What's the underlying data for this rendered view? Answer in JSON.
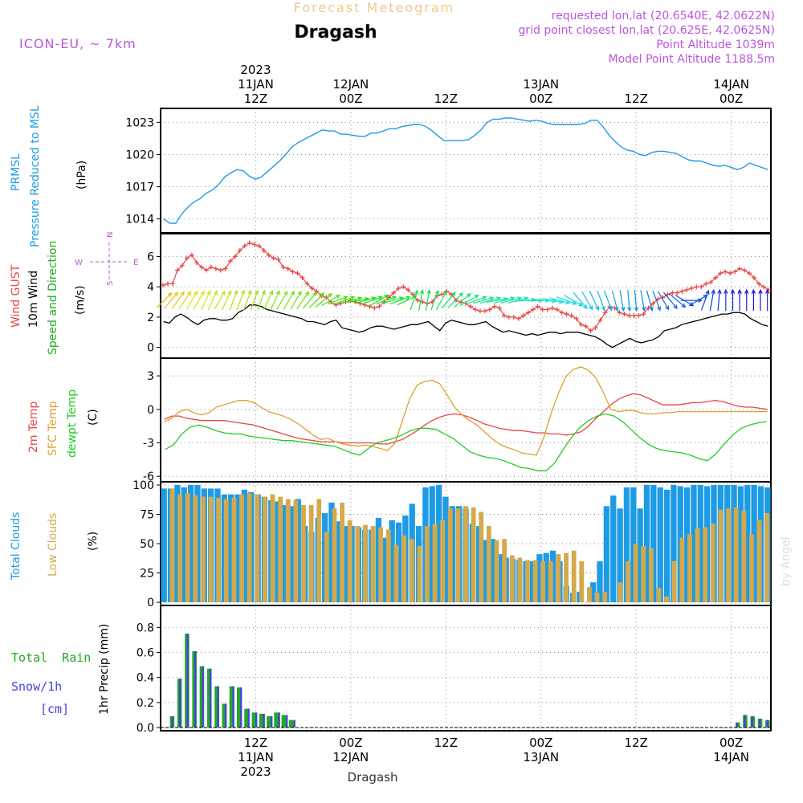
{
  "header": {
    "subtitle": "Forecast Meteogram",
    "station": "Dragash",
    "model": "ICON-EU, ~ 7km",
    "requested": "requested lon,lat (20.6540E, 42.0622N)",
    "gridpoint": "grid point closest lon,lat (20.625E, 42.0625N)",
    "point_alt": "Point Altitude 1039m",
    "model_alt": "Model Point Altitude 1188.5m",
    "watermark": "by Angel",
    "footer": "Dragash"
  },
  "colors": {
    "pressure": "#1e9be6",
    "gust": "#e84646",
    "wind": "#000000",
    "t2m": "#e84646",
    "sfc": "#e0a030",
    "dewpt": "#22cc22",
    "total_clouds": "#1e9be6",
    "low_clouds": "#d4a94a",
    "rain": "#22aa22",
    "snow": "#4444dd",
    "purple": "#bb55dd",
    "grid": "#888888"
  },
  "time_axis": {
    "top_labels": [
      {
        "hour": 12,
        "lines": [
          "2023",
          "11JAN",
          "12Z"
        ]
      },
      {
        "hour": 24,
        "lines": [
          "12JAN",
          "00Z"
        ]
      },
      {
        "hour": 36,
        "lines": [
          "12Z"
        ]
      },
      {
        "hour": 48,
        "lines": [
          "13JAN",
          "00Z"
        ]
      },
      {
        "hour": 60,
        "lines": [
          "12Z"
        ]
      },
      {
        "hour": 72,
        "lines": [
          "14JAN",
          "00Z"
        ]
      }
    ],
    "bottom_labels": [
      {
        "hour": 12,
        "lines": [
          "12Z",
          "11JAN",
          "2023"
        ]
      },
      {
        "hour": 24,
        "lines": [
          "00Z",
          "12JAN"
        ]
      },
      {
        "hour": 36,
        "lines": [
          "12Z"
        ]
      },
      {
        "hour": 48,
        "lines": [
          "00Z",
          "13JAN"
        ]
      },
      {
        "hour": 60,
        "lines": [
          "12Z"
        ]
      },
      {
        "hour": 72,
        "lines": [
          "00Z",
          "14JAN"
        ]
      }
    ]
  },
  "panels": {
    "pressure": {
      "label_lines": [
        "PRMSL",
        "Pressure Reduced to MSL"
      ],
      "unit": "(hPa)"
    },
    "wind": {
      "label_gust": "Wind GUST",
      "label_wind_lines": [
        "10m Wind",
        "Speed and Direction"
      ],
      "unit": "(m/s)",
      "compass": {
        "w": "W",
        "e": "E",
        "n": "N",
        "s": "S"
      }
    },
    "temp": {
      "label_t2m": "2m Temp",
      "label_sfc": "SFC Temp",
      "label_dew": "dewpt Temp",
      "unit": "(C)"
    },
    "clouds": {
      "label_total": "Total Clouds",
      "label_low": "Low Clouds",
      "unit": "(%)"
    },
    "precip": {
      "label_rain": "Total  Rain",
      "label_snow": "Snow/1h",
      "label_cm": "[cm]",
      "unit": "1hr Precip (mm)"
    }
  },
  "chart_data": {
    "type": "line",
    "x_start_hour": 0,
    "x_end_hour": 77,
    "series_hours_start": 0.5,
    "pressure": {
      "ylim": [
        1013,
        1024
      ],
      "ticks": [
        1014,
        1017,
        1020,
        1023
      ],
      "values": [
        1014.0,
        1013.6,
        1013.6,
        1014.5,
        1015.1,
        1015.6,
        1015.9,
        1016.4,
        1016.7,
        1017.2,
        1017.9,
        1018.3,
        1018.6,
        1018.5,
        1018.0,
        1017.7,
        1017.9,
        1018.4,
        1018.9,
        1019.4,
        1020.0,
        1020.7,
        1021.1,
        1021.4,
        1021.7,
        1022.0,
        1022.3,
        1022.2,
        1022.2,
        1021.9,
        1021.9,
        1021.8,
        1021.7,
        1021.7,
        1022.0,
        1022.0,
        1022.2,
        1022.4,
        1022.4,
        1022.6,
        1022.7,
        1022.8,
        1022.8,
        1022.6,
        1022.2,
        1021.7,
        1021.3,
        1021.3,
        1021.3,
        1021.3,
        1021.4,
        1021.8,
        1022.3,
        1023.0,
        1023.3,
        1023.3,
        1023.4,
        1023.4,
        1023.3,
        1023.2,
        1023.1,
        1023.2,
        1023.1,
        1022.9,
        1022.8,
        1022.8,
        1022.8,
        1022.8,
        1022.8,
        1022.9,
        1023.2,
        1023.2,
        1022.6,
        1021.8,
        1021.2,
        1020.7,
        1020.4,
        1020.3,
        1020.0,
        1019.9,
        1020.2,
        1020.3,
        1020.3,
        1020.2,
        1020.1,
        1019.8,
        1019.5,
        1019.4,
        1019.4,
        1019.2,
        1019.0,
        1018.9,
        1019.0,
        1018.8,
        1018.6,
        1018.8,
        1019.2,
        1019.0,
        1018.8,
        1018.6
      ]
    },
    "wind": {
      "ylim": [
        -0.5,
        7.3
      ],
      "ticks": [
        0,
        2,
        4,
        6
      ],
      "gust": [
        4.1,
        4.2,
        4.2,
        5.1,
        5.4,
        5.9,
        6.1,
        5.6,
        5.3,
        5.1,
        5.3,
        5.2,
        5.1,
        5.2,
        5.7,
        6.0,
        6.4,
        6.7,
        6.9,
        6.8,
        6.7,
        6.4,
        6.1,
        5.9,
        5.8,
        5.3,
        5.2,
        5.0,
        4.9,
        4.6,
        4.2,
        3.9,
        3.7,
        3.4,
        3.3,
        3.0,
        2.8,
        2.9,
        3.0,
        3.1,
        3.0,
        2.9,
        2.8,
        2.7,
        2.6,
        2.7,
        3.0,
        3.3,
        3.6,
        3.9,
        4.0,
        3.8,
        3.5,
        3.1,
        3.0,
        2.9,
        3.0,
        3.4,
        3.5,
        3.7,
        3.5,
        3.1,
        3.0,
        2.9,
        2.7,
        2.5,
        2.4,
        2.4,
        2.5,
        2.7,
        2.6,
        2.1,
        2.0,
        2.0,
        1.9,
        2.1,
        2.3,
        2.5,
        2.7,
        2.5,
        2.5,
        2.6,
        2.5,
        2.3,
        2.2,
        2.1,
        1.9,
        1.5,
        1.4,
        1.1,
        1.3,
        1.8,
        2.3,
        2.7,
        2.6,
        2.3,
        2.2,
        2.1,
        2.1,
        2.1,
        2.2,
        2.6,
        2.9,
        3.2,
        3.3,
        3.5,
        3.6,
        3.6,
        3.7,
        3.8,
        3.9,
        4.0,
        4.0,
        4.2,
        4.3,
        4.6,
        4.9,
        5.0,
        4.9,
        5.0,
        5.2,
        5.1,
        4.9,
        4.6,
        4.2,
        4.0,
        3.8
      ],
      "speed": [
        1.7,
        1.6,
        2.0,
        2.2,
        2.0,
        1.7,
        1.5,
        1.8,
        1.9,
        1.9,
        1.8,
        1.8,
        1.9,
        2.3,
        2.5,
        2.8,
        2.8,
        2.7,
        2.5,
        2.4,
        2.3,
        2.2,
        2.1,
        2.0,
        1.9,
        1.7,
        1.7,
        1.6,
        1.5,
        1.7,
        1.8,
        1.3,
        1.2,
        1.1,
        1.0,
        1.1,
        1.3,
        1.4,
        1.4,
        1.3,
        1.2,
        1.3,
        1.4,
        1.5,
        1.5,
        1.6,
        1.7,
        1.4,
        1.1,
        1.6,
        1.8,
        1.7,
        1.6,
        1.5,
        1.5,
        1.6,
        1.7,
        1.4,
        1.2,
        1.0,
        1.1,
        1.0,
        0.9,
        0.8,
        0.9,
        0.8,
        0.9,
        1.0,
        1.0,
        0.9,
        1.0,
        1.0,
        1.0,
        0.9,
        0.8,
        0.7,
        0.5,
        0.2,
        0.0,
        0.2,
        0.4,
        0.6,
        0.4,
        0.3,
        0.4,
        0.5,
        0.7,
        1.1,
        1.2,
        1.3,
        1.5,
        1.6,
        1.7,
        1.8,
        1.9,
        2.0,
        2.1,
        2.2,
        2.2,
        2.3,
        2.3,
        2.2,
        1.9,
        1.7,
        1.5,
        1.4
      ],
      "direction_deg": [
        225,
        220,
        215,
        215,
        210,
        210,
        205,
        205,
        210,
        205,
        200,
        200,
        200,
        200,
        200,
        205,
        205,
        210,
        210,
        210,
        215,
        220,
        225,
        230,
        240,
        250,
        250,
        255,
        260,
        255,
        250,
        240,
        250,
        255,
        250,
        245,
        200,
        190,
        190,
        200,
        210,
        220,
        225,
        230,
        240,
        250,
        255,
        255,
        260,
        255,
        255,
        255,
        265,
        270,
        270,
        275,
        280,
        285,
        290,
        300,
        320,
        330,
        335,
        340,
        340,
        345,
        350,
        355,
        355,
        350,
        345,
        340,
        330,
        320,
        310,
        300,
        270,
        240,
        200,
        190,
        185,
        180,
        180,
        180,
        180,
        180,
        180,
        180
      ]
    },
    "temperature": {
      "ylim": [
        -6.2,
        4.3
      ],
      "ticks": [
        -6,
        -3,
        0,
        3
      ],
      "t2m": [
        -0.9,
        -0.6,
        -0.6,
        -0.8,
        -0.9,
        -1.0,
        -1.0,
        -1.0,
        -1.0,
        -1.1,
        -1.2,
        -1.3,
        -1.4,
        -1.6,
        -1.8,
        -2.0,
        -2.2,
        -2.4,
        -2.6,
        -2.7,
        -2.8,
        -2.9,
        -2.9,
        -2.9,
        -3.0,
        -3.0,
        -3.0,
        -3.0,
        -3.0,
        -3.1,
        -3.1,
        -2.9,
        -2.7,
        -2.3,
        -1.9,
        -1.4,
        -1.0,
        -0.7,
        -0.5,
        -0.4,
        -0.5,
        -0.7,
        -1.0,
        -1.3,
        -1.5,
        -1.7,
        -1.8,
        -1.9,
        -1.9,
        -2.0,
        -2.1,
        -2.1,
        -2.2,
        -2.2,
        -2.3,
        -2.2,
        -2.0,
        -1.5,
        -0.8,
        -0.2,
        0.4,
        0.9,
        1.2,
        1.4,
        1.3,
        1.0,
        0.7,
        0.4,
        0.4,
        0.4,
        0.5,
        0.6,
        0.6,
        0.7,
        0.8,
        0.7,
        0.5,
        0.3,
        0.2,
        0.2,
        0.1,
        0.0
      ],
      "sfc": [
        -1.1,
        -0.8,
        -0.2,
        0.0,
        -0.3,
        -0.5,
        -0.3,
        0.2,
        0.4,
        0.6,
        0.8,
        0.8,
        0.6,
        0.2,
        -0.2,
        -0.4,
        -0.6,
        -0.9,
        -1.3,
        -1.8,
        -2.3,
        -2.7,
        -2.6,
        -2.9,
        -3.1,
        -3.2,
        -3.3,
        -3.2,
        -3.3,
        -3.5,
        -3.7,
        -3.0,
        -1.0,
        1.0,
        2.2,
        2.5,
        2.6,
        2.3,
        1.3,
        0.2,
        -0.5,
        -1.0,
        -1.4,
        -2.0,
        -2.6,
        -3.1,
        -3.4,
        -3.6,
        -3.9,
        -4.0,
        -4.1,
        -2.5,
        -0.3,
        1.5,
        3.0,
        3.6,
        3.8,
        3.5,
        2.8,
        1.5,
        0.0,
        -0.2,
        -0.1,
        -0.1,
        -0.3,
        -0.4,
        -0.4,
        -0.3,
        -0.3,
        -0.2,
        -0.2,
        -0.2,
        -0.2,
        -0.2,
        -0.2,
        -0.2,
        -0.2,
        -0.2,
        -0.2,
        -0.2,
        -0.2,
        -0.2
      ],
      "dewpt": [
        -3.6,
        -3.2,
        -2.2,
        -1.6,
        -1.4,
        -1.6,
        -1.9,
        -2.1,
        -2.2,
        -2.2,
        -2.4,
        -2.5,
        -2.6,
        -2.7,
        -2.8,
        -2.8,
        -2.9,
        -3.0,
        -3.1,
        -3.2,
        -3.3,
        -3.6,
        -3.9,
        -4.1,
        -3.5,
        -3.0,
        -2.8,
        -2.6,
        -2.3,
        -1.9,
        -1.7,
        -1.7,
        -1.8,
        -2.2,
        -2.6,
        -3.2,
        -3.8,
        -4.1,
        -4.3,
        -4.4,
        -4.6,
        -4.9,
        -5.2,
        -5.3,
        -5.5,
        -5.5,
        -4.8,
        -3.6,
        -2.5,
        -1.6,
        -1.0,
        -0.6,
        -0.4,
        -0.6,
        -1.1,
        -1.8,
        -2.5,
        -3.1,
        -3.5,
        -3.7,
        -3.8,
        -3.9,
        -4.1,
        -4.4,
        -4.6,
        -4.0,
        -3.1,
        -2.3,
        -1.7,
        -1.4,
        -1.2,
        -1.1
      ]
    },
    "clouds": {
      "ylim": [
        0,
        100
      ],
      "ticks": [
        0,
        25,
        50,
        75,
        100
      ],
      "total": [
        97,
        97,
        100,
        98,
        100,
        100,
        97,
        97,
        97,
        92,
        92,
        92,
        96,
        94,
        92,
        90,
        87,
        86,
        83,
        82,
        88,
        65,
        60,
        72,
        76,
        85,
        69,
        65,
        65,
        64,
        62,
        62,
        72,
        55,
        70,
        68,
        74,
        84,
        65,
        98,
        99,
        100,
        90,
        82,
        82,
        80,
        67,
        65,
        53,
        54,
        41,
        38,
        37,
        36,
        35,
        35,
        41,
        42,
        44,
        35,
        14,
        8,
        9,
        0,
        17,
        35,
        82,
        91,
        80,
        98,
        98,
        80,
        100,
        100,
        98,
        96,
        100,
        99,
        98,
        100,
        100,
        99,
        100,
        100,
        100,
        100,
        99,
        100,
        100,
        99,
        98
      ],
      "low": [
        0,
        97,
        92,
        93,
        91,
        90,
        90,
        89,
        88,
        89,
        92,
        93,
        92,
        90,
        92,
        90,
        88,
        87,
        83,
        83,
        88,
        60,
        80,
        85,
        70,
        65,
        66,
        65,
        64,
        62,
        49,
        57,
        54,
        48,
        65,
        67,
        70,
        80,
        80,
        82,
        81,
        77,
        65,
        53,
        54,
        40,
        38,
        36,
        36,
        35,
        35,
        41,
        42,
        44,
        35,
        13,
        8,
        9,
        0,
        17,
        35,
        50,
        48,
        46,
        12,
        5,
        35,
        55,
        58,
        63,
        64,
        67,
        79,
        80,
        81,
        78,
        58,
        70,
        76
      ]
    },
    "precip": {
      "ylim": [
        0,
        0.95
      ],
      "ticks": [
        0,
        0.2,
        0.4,
        0.6,
        0.8
      ],
      "rain": [
        0,
        0.09,
        0.39,
        0.75,
        0.61,
        0.49,
        0.47,
        0.33,
        0.19,
        0.33,
        0.32,
        0.15,
        0.12,
        0.11,
        0.09,
        0.12,
        0.1,
        0.06,
        0,
        0,
        0,
        0,
        0,
        0,
        0,
        0,
        0,
        0,
        0,
        0,
        0,
        0,
        0,
        0,
        0,
        0,
        0,
        0,
        0,
        0,
        0,
        0,
        0,
        0,
        0,
        0,
        0,
        0,
        0,
        0,
        0,
        0,
        0,
        0,
        0,
        0,
        0,
        0,
        0,
        0,
        0,
        0,
        0,
        0,
        0,
        0,
        0,
        0,
        0,
        0,
        0,
        0,
        0,
        0,
        0,
        0,
        0,
        0.04,
        0.1,
        0.09,
        0.07,
        0.06
      ],
      "snow": [
        0,
        0.09,
        0.39,
        0.75,
        0.61,
        0.49,
        0.47,
        0.33,
        0.19,
        0.33,
        0.32,
        0.15,
        0.12,
        0.11,
        0.09,
        0.12,
        0.1,
        0.06,
        0,
        0,
        0,
        0,
        0,
        0,
        0,
        0,
        0,
        0,
        0,
        0,
        0,
        0,
        0,
        0,
        0,
        0,
        0,
        0,
        0,
        0,
        0,
        0,
        0,
        0,
        0,
        0,
        0,
        0,
        0,
        0,
        0,
        0,
        0,
        0,
        0,
        0,
        0,
        0,
        0,
        0,
        0,
        0,
        0,
        0,
        0,
        0,
        0,
        0,
        0,
        0,
        0,
        0,
        0,
        0,
        0,
        0.04,
        0.1,
        0.09,
        0.07,
        0.06
      ]
    }
  }
}
